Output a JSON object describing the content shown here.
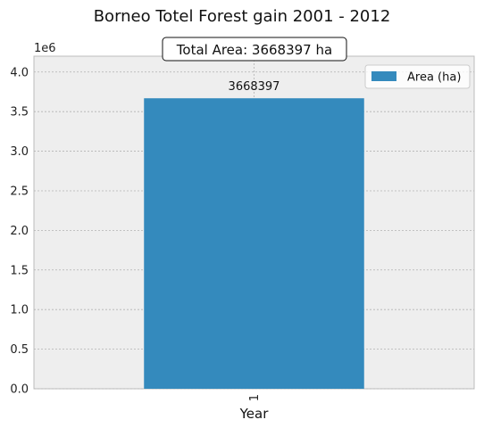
{
  "chart_data": {
    "type": "bar",
    "title": "Borneo Totel Forest gain 2001 - 2012",
    "annotation": "Total Area: 3668397 ha",
    "xlabel": "Year",
    "ylabel": "",
    "offset_label": "1e6",
    "categories": [
      "1"
    ],
    "series": [
      {
        "name": "Area (ha)",
        "values": [
          3668397
        ]
      }
    ],
    "data_labels": [
      "3668397"
    ],
    "ylim": [
      0,
      4200000
    ],
    "yticks": [
      0,
      500000,
      1000000,
      1500000,
      2000000,
      2500000,
      3000000,
      3500000,
      4000000
    ],
    "ytick_labels": [
      "0.0",
      "0.5",
      "1.0",
      "1.5",
      "2.0",
      "2.5",
      "3.0",
      "3.5",
      "4.0"
    ],
    "grid": true,
    "legend_position": "top-right",
    "colors": {
      "bar": "#348ABD",
      "plot_background": "#EEEEEE",
      "grid": "#B2B2B2",
      "axis_spine": "#BCBCBC"
    }
  }
}
